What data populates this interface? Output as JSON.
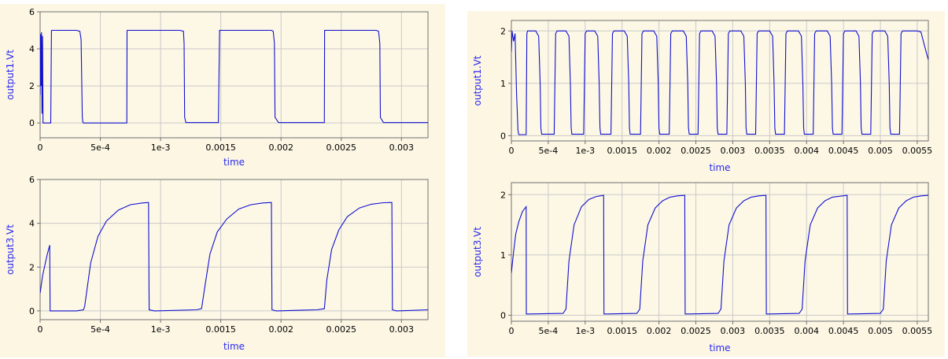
{
  "colors": {
    "panel_bg": "#fcf6e3",
    "plot_bg": "#fdf8e6",
    "grid": "#c9c9c9",
    "axis": "#707070",
    "trace": "#1010d0",
    "axis_label": "#2a2af0"
  },
  "chart_data": [
    {
      "id": "left-top",
      "type": "line",
      "xlabel": "time",
      "ylabel": "output1.Vt",
      "xlim": [
        0,
        0.00322
      ],
      "ylim": [
        -0.8,
        6
      ],
      "xticks": [
        0,
        0.0005,
        0.001,
        0.0015,
        0.002,
        0.0025,
        0.003
      ],
      "xtick_labels": [
        "0",
        "5e-4",
        "1e-3",
        "0.0015",
        "0.002",
        "0.0025",
        "0.003"
      ],
      "yticks": [
        0,
        2,
        4,
        6
      ],
      "ytick_labels": [
        "0",
        "2",
        "4",
        "6"
      ],
      "grid": true,
      "series": [
        {
          "x": [
            0,
            4e-06,
            8e-06,
            1.2e-05,
            1.6e-05,
            2e-05,
            2.4e-05,
            2.8e-05,
            4e-05,
            6e-05,
            8.8e-05,
            9.4e-05,
            0.0001,
            0.0003,
            0.00033,
            0.00034,
            0.00035,
            0.000355,
            0.00036,
            0.0004,
            0.00072,
            0.000722,
            0.000725,
            0.00116,
            0.00119,
            0.001195,
            0.0012,
            0.00121,
            0.00126,
            0.00136,
            0.00148,
            0.00149,
            0.00192,
            0.001935,
            0.001945,
            0.00195,
            0.00198,
            0.00228,
            0.00236,
            0.002362,
            0.00279,
            0.00281,
            0.00282,
            0.002825,
            0.00285,
            0.003,
            0.00322
          ],
          "y": [
            1.5,
            4.8,
            2.0,
            4.9,
            0.5,
            4.7,
            0.0,
            0.0,
            0.0,
            0.0,
            0.0,
            4.99,
            5.0,
            5.0,
            4.95,
            4.5,
            0.3,
            0.02,
            0.0,
            0.0,
            0.0,
            4.99,
            5.0,
            5.0,
            4.95,
            4.3,
            0.3,
            0.02,
            0.02,
            0.02,
            0.02,
            5.0,
            5.0,
            4.95,
            4.3,
            0.3,
            0.02,
            0.02,
            0.02,
            5.0,
            5.0,
            4.95,
            4.3,
            0.3,
            0.02,
            0.02,
            0.02
          ]
        }
      ]
    },
    {
      "id": "left-bottom",
      "type": "line",
      "xlabel": "time",
      "ylabel": "output3.Vt",
      "xlim": [
        0,
        0.00322
      ],
      "ylim": [
        -0.4,
        6
      ],
      "xticks": [
        0,
        0.0005,
        0.001,
        0.0015,
        0.002,
        0.0025,
        0.003
      ],
      "xtick_labels": [
        "0",
        "5e-4",
        "1e-3",
        "0.0015",
        "0.002",
        "0.0025",
        "0.003"
      ],
      "yticks": [
        0,
        2,
        4,
        6
      ],
      "ytick_labels": [
        "0",
        "2",
        "4",
        "6"
      ],
      "grid": true,
      "series": [
        {
          "x": [
            0,
            2e-05,
            4e-05,
            6e-05,
            8e-05,
            8.3e-05,
            0.0001,
            0.0003,
            0.00036,
            0.00037,
            0.00042,
            0.00048,
            0.00055,
            0.00065,
            0.00075,
            0.00085,
            0.0009,
            0.000905,
            0.00095,
            0.0013,
            0.00134,
            0.00137,
            0.00141,
            0.00147,
            0.00155,
            0.00165,
            0.00175,
            0.00185,
            0.00192,
            0.001925,
            0.00196,
            0.0023,
            0.00236,
            0.00238,
            0.00242,
            0.00248,
            0.00255,
            0.00265,
            0.00275,
            0.00285,
            0.00292,
            0.002925,
            0.00296,
            0.00322
          ],
          "y": [
            0.8,
            1.6,
            2.1,
            2.6,
            3.0,
            0.0,
            0.0,
            0.0,
            0.05,
            0.2,
            2.2,
            3.4,
            4.1,
            4.6,
            4.85,
            4.93,
            4.95,
            0.05,
            0.0,
            0.05,
            0.1,
            1.2,
            2.6,
            3.6,
            4.2,
            4.65,
            4.85,
            4.93,
            4.95,
            0.05,
            0.0,
            0.05,
            0.1,
            1.4,
            2.8,
            3.7,
            4.3,
            4.7,
            4.87,
            4.94,
            4.95,
            0.05,
            0.0,
            0.05
          ]
        }
      ]
    },
    {
      "id": "right-top",
      "type": "line",
      "xlabel": "time",
      "ylabel": "output1.Vt",
      "xlim": [
        0,
        0.00565
      ],
      "ylim": [
        -0.1,
        2.2
      ],
      "xticks": [
        0,
        0.0005,
        0.001,
        0.0015,
        0.002,
        0.0025,
        0.003,
        0.0035,
        0.004,
        0.0045,
        0.005,
        0.0055
      ],
      "xtick_labels": [
        "0",
        "5e-4",
        "1e-3",
        "0.0015",
        "0.002",
        "0.0025",
        "0.003",
        "0.0035",
        "0.004",
        "0.0045",
        "0.005",
        "0.0055"
      ],
      "yticks": [
        0,
        1,
        2
      ],
      "ytick_labels": [
        "0",
        "1",
        "2"
      ],
      "grid": true,
      "series": [
        {
          "x": [
            0,
            1e-05,
            3e-05,
            5e-05,
            7e-05,
            9e-05,
            0.0001,
            0.00011,
            0.0002,
            0.00021,
            0.00022,
            0.00033,
            0.00037,
            0.00039,
            0.0004,
            0.00041,
            0.00058,
            0.0006,
            0.00062,
            0.00074,
            0.00078,
            0.0008,
            0.00081,
            0.00082,
            0.00098,
            0.001,
            0.00102,
            0.00113,
            0.00117,
            0.00119,
            0.0012,
            0.00121,
            0.00135,
            0.00137,
            0.00139,
            0.00153,
            0.00157,
            0.00159,
            0.0016,
            0.00161,
            0.00175,
            0.00177,
            0.00179,
            0.00193,
            0.00197,
            0.00199,
            0.002,
            0.00201,
            0.00214,
            0.00216,
            0.00218,
            0.00233,
            0.00237,
            0.00239,
            0.0024,
            0.00241,
            0.00253,
            0.00255,
            0.00257,
            0.00272,
            0.00276,
            0.00278,
            0.00279,
            0.0028,
            0.00292,
            0.00294,
            0.00296,
            0.00311,
            0.00315,
            0.00317,
            0.00318,
            0.00319,
            0.00331,
            0.00333,
            0.00335,
            0.0035,
            0.00354,
            0.00356,
            0.00357,
            0.00358,
            0.0037,
            0.00372,
            0.00374,
            0.00389,
            0.00393,
            0.00395,
            0.00396,
            0.00397,
            0.00409,
            0.00411,
            0.00413,
            0.00428,
            0.00432,
            0.00434,
            0.00435,
            0.00436,
            0.00448,
            0.0045,
            0.00452,
            0.00467,
            0.00471,
            0.00473,
            0.00474,
            0.00475,
            0.00487,
            0.00489,
            0.00491,
            0.00506,
            0.0051,
            0.00512,
            0.00513,
            0.00514,
            0.00526,
            0.00528,
            0.0053,
            0.00545,
            0.0055,
            0.00555,
            0.00562,
            0.00565
          ],
          "y": [
            1.6,
            2.0,
            1.8,
            1.95,
            0.8,
            0.1,
            0.02,
            0.02,
            0.02,
            1.95,
            2.0,
            2.0,
            1.9,
            1.0,
            0.15,
            0.03,
            0.03,
            1.95,
            2.0,
            2.0,
            1.9,
            1.0,
            0.15,
            0.03,
            0.03,
            1.95,
            2.0,
            2.0,
            1.9,
            1.0,
            0.15,
            0.03,
            0.03,
            1.95,
            2.0,
            2.0,
            1.9,
            1.0,
            0.15,
            0.03,
            0.03,
            1.95,
            2.0,
            2.0,
            1.9,
            1.0,
            0.15,
            0.03,
            0.03,
            1.95,
            2.0,
            2.0,
            1.9,
            1.0,
            0.15,
            0.03,
            0.03,
            1.95,
            2.0,
            2.0,
            1.9,
            1.0,
            0.15,
            0.03,
            0.03,
            1.95,
            2.0,
            2.0,
            1.9,
            1.0,
            0.15,
            0.03,
            0.03,
            1.95,
            2.0,
            2.0,
            1.9,
            1.0,
            0.15,
            0.03,
            0.03,
            1.95,
            2.0,
            2.0,
            1.9,
            1.0,
            0.15,
            0.03,
            0.03,
            1.95,
            2.0,
            2.0,
            1.9,
            1.0,
            0.15,
            0.03,
            0.03,
            1.95,
            2.0,
            2.0,
            1.9,
            1.0,
            0.15,
            0.03,
            0.03,
            1.95,
            2.0,
            2.0,
            1.9,
            1.0,
            0.15,
            0.03,
            0.03,
            1.95,
            2.0,
            2.0,
            2.0,
            1.98,
            1.6,
            1.45
          ]
        }
      ]
    },
    {
      "id": "right-bottom",
      "type": "line",
      "xlabel": "time",
      "ylabel": "output3.Vt",
      "xlim": [
        0,
        0.00565
      ],
      "ylim": [
        -0.1,
        2.2
      ],
      "xticks": [
        0,
        0.0005,
        0.001,
        0.0015,
        0.002,
        0.0025,
        0.003,
        0.0035,
        0.004,
        0.0045,
        0.005,
        0.0055
      ],
      "xtick_labels": [
        "0",
        "5e-4",
        "1e-3",
        "0.0015",
        "0.002",
        "0.0025",
        "0.003",
        "0.0035",
        "0.004",
        "0.0045",
        "0.005",
        "0.0055"
      ],
      "yticks": [
        0,
        1,
        2
      ],
      "ytick_labels": [
        "0",
        "1",
        "2"
      ],
      "grid": true,
      "series": [
        {
          "x": [
            0,
            3e-05,
            6e-05,
            0.0001,
            0.00015,
            0.0002,
            0.000203,
            0.00025,
            0.0007,
            0.00074,
            0.00078,
            0.00085,
            0.00095,
            0.00105,
            0.00115,
            0.00125,
            0.001255,
            0.0013,
            0.0017,
            0.00174,
            0.00178,
            0.00185,
            0.00195,
            0.00205,
            0.00215,
            0.00225,
            0.00235,
            0.002355,
            0.0024,
            0.0028,
            0.00284,
            0.00288,
            0.00295,
            0.00305,
            0.00315,
            0.00325,
            0.00335,
            0.00345,
            0.003455,
            0.0035,
            0.0039,
            0.00394,
            0.00398,
            0.00405,
            0.00415,
            0.00425,
            0.00435,
            0.00455,
            0.004555,
            0.0046,
            0.005,
            0.00504,
            0.00508,
            0.00515,
            0.00525,
            0.00535,
            0.00545,
            0.00555,
            0.00565
          ],
          "y": [
            0.7,
            1.05,
            1.35,
            1.55,
            1.72,
            1.8,
            0.02,
            0.02,
            0.03,
            0.1,
            0.9,
            1.5,
            1.8,
            1.92,
            1.97,
            1.99,
            0.02,
            0.02,
            0.03,
            0.1,
            0.9,
            1.5,
            1.78,
            1.9,
            1.96,
            1.98,
            1.99,
            0.02,
            0.02,
            0.03,
            0.1,
            0.9,
            1.5,
            1.78,
            1.9,
            1.96,
            1.98,
            1.99,
            0.02,
            0.02,
            0.03,
            0.1,
            0.9,
            1.5,
            1.78,
            1.9,
            1.96,
            1.99,
            0.02,
            0.02,
            0.03,
            0.1,
            0.9,
            1.5,
            1.78,
            1.9,
            1.96,
            1.98,
            1.99
          ]
        }
      ]
    }
  ]
}
